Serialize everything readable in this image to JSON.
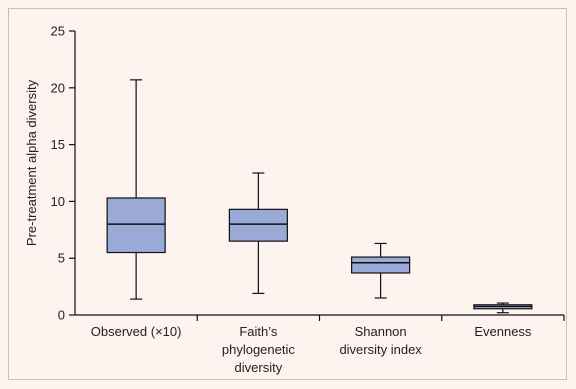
{
  "chart_data": {
    "type": "box",
    "title": "",
    "xlabel": "",
    "ylabel": "Pre-treatment alpha diversity",
    "ylim": [
      0,
      25
    ],
    "yticks": [
      "0",
      "5",
      "10",
      "15",
      "20",
      "25"
    ],
    "categories": [
      [
        "Observed (×10)"
      ],
      [
        "Faith’s",
        "phylogenetic",
        "diversity"
      ],
      [
        "Shannon",
        "diversity index"
      ],
      [
        "Evenness"
      ]
    ],
    "boxes": [
      {
        "min": 1.4,
        "q1": 5.5,
        "median": 8.0,
        "q3": 10.3,
        "max": 20.7
      },
      {
        "min": 1.9,
        "q1": 6.5,
        "median": 8.0,
        "q3": 9.3,
        "max": 12.5
      },
      {
        "min": 1.5,
        "q1": 3.7,
        "median": 4.6,
        "q3": 5.1,
        "max": 6.3
      },
      {
        "min": 0.2,
        "q1": 0.55,
        "median": 0.75,
        "q3": 0.9,
        "max": 1.05
      }
    ],
    "grid": false,
    "legend": "none",
    "box_color": "#9aaad6",
    "line_color": "#111111"
  }
}
